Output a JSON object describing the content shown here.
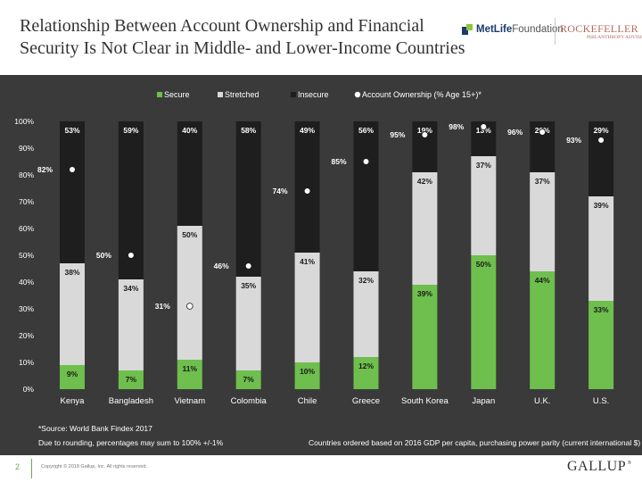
{
  "header": {
    "title_line1": "Relationship Between Account Ownership and Financial",
    "title_line2": "Security Is Not Clear in Middle- and Lower-Income Countries",
    "metlife_strong": "MetLife",
    "metlife_light": "Foundation",
    "rockefeller_main": "ROCKEFELLER",
    "rockefeller_sub": "PHILANTHROPY ADVISORS"
  },
  "colors": {
    "secure": "#6ebf4d",
    "stretched": "#d9d9d9",
    "insecure": "#1e1e1e",
    "panel": "#3a3a3a",
    "text": "#ffffff"
  },
  "chart_data": {
    "type": "bar",
    "stacked": true,
    "categories": [
      "Kenya",
      "Bangladesh",
      "Vietnam",
      "Colombia",
      "Chile",
      "Greece",
      "South Korea",
      "Japan",
      "U.K.",
      "U.S."
    ],
    "series": [
      {
        "name": "Secure",
        "values": [
          9,
          7,
          11,
          7,
          10,
          12,
          39,
          50,
          44,
          33
        ]
      },
      {
        "name": "Stretched",
        "values": [
          38,
          34,
          50,
          35,
          41,
          32,
          42,
          37,
          37,
          39
        ]
      },
      {
        "name": "Insecure",
        "values": [
          53,
          59,
          40,
          58,
          49,
          56,
          19,
          13,
          20,
          29
        ]
      }
    ],
    "overlay": {
      "name": "Account Ownership (% Age 15+)*",
      "type": "scatter",
      "values": [
        82,
        50,
        31,
        46,
        74,
        85,
        95,
        98,
        96,
        93
      ]
    },
    "value_labels": {
      "secure": [
        "9%",
        "7%",
        "11%",
        "7%",
        "10%",
        "12%",
        "39%",
        "50%",
        "44%",
        "33%"
      ],
      "stretched": [
        "38%",
        "34%",
        "50%",
        "35%",
        "41%",
        "32%",
        "42%",
        "37%",
        "37%",
        "39%"
      ],
      "insecure": [
        "53%",
        "59%",
        "40%",
        "58%",
        "49%",
        "56%",
        "19%",
        "13%",
        "20%",
        "29%"
      ],
      "ownership": [
        "82%",
        "50%",
        "31%",
        "46%",
        "74%",
        "85%",
        "95%",
        "98%",
        "96%",
        "93%"
      ]
    },
    "yticks": [
      "0%",
      "10%",
      "20%",
      "30%",
      "40%",
      "50%",
      "60%",
      "70%",
      "80%",
      "90%",
      "100%"
    ],
    "ylim": [
      0,
      100
    ],
    "legend": [
      "Secure",
      "Stretched",
      "Insecure",
      "Account Ownership (% Age 15+)*"
    ],
    "legend_position": "top",
    "grid": false
  },
  "notes": {
    "source": "*Source: World Bank Findex 2017",
    "rounding": "Due to rounding, percentages may sum to 100% +/-1%",
    "order": "Countries ordered based on 2016 GDP per capita, purchasing power parity (current international $)"
  },
  "footer": {
    "page": "2",
    "copyright": "Copyright © 2018 Gallup, Inc. All rights reserved.",
    "brand": "GALLUP",
    "brand_mark": "®"
  }
}
